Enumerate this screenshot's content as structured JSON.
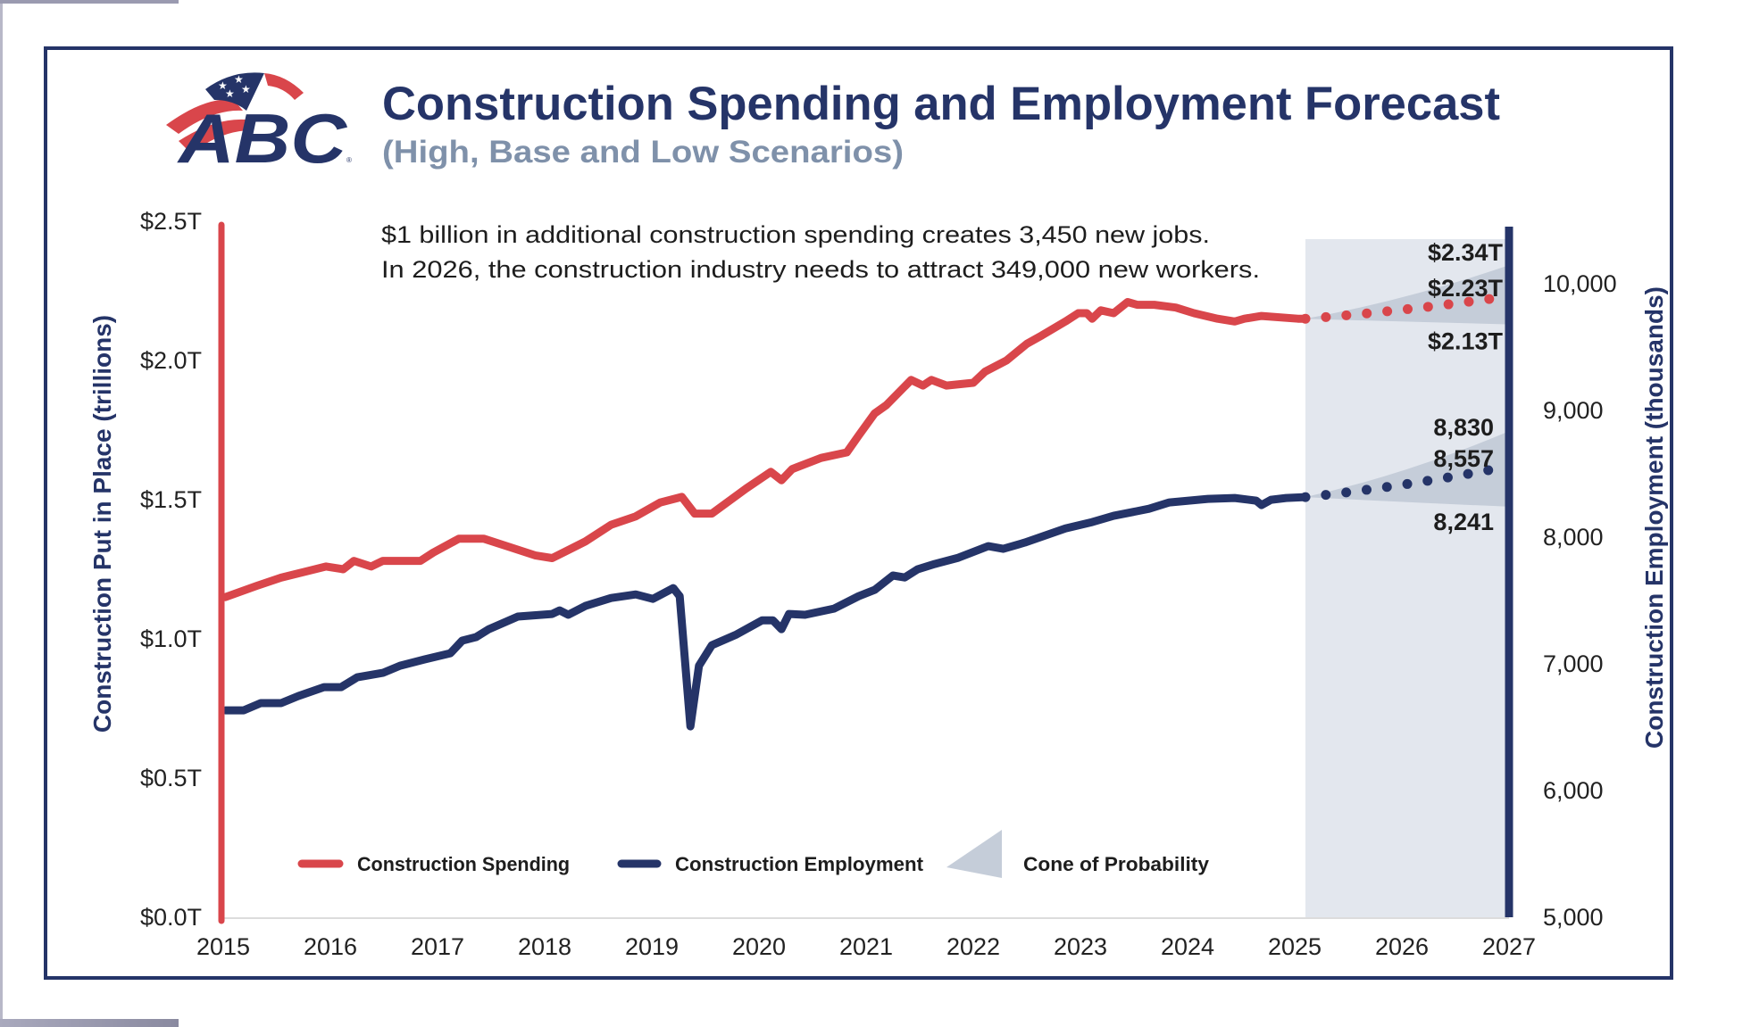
{
  "header": {
    "logo_text": "ABC",
    "title": "Construction Spending and Employment Forecast",
    "subtitle": "(High, Base and Low Scenarios)"
  },
  "annotation": {
    "line1": "$1 billion in additional construction spending creates 3,450 new jobs.",
    "line2": "In 2026, the construction industry needs to attract 349,000 new workers."
  },
  "colors": {
    "spending": "#d9464b",
    "employment": "#253468",
    "cone": "#c5cdd9",
    "forecast_band": "#e3e7ee",
    "frame": "#253468"
  },
  "chart_data": {
    "type": "line",
    "title": "Construction Spending and Employment Forecast",
    "subtitle": "(High, Base and Low Scenarios)",
    "xlabel": "",
    "xlim": [
      2015,
      2027
    ],
    "x_ticks": [
      "2015",
      "2016",
      "2017",
      "2018",
      "2019",
      "2020",
      "2021",
      "2022",
      "2023",
      "2024",
      "2025",
      "2026",
      "2027"
    ],
    "y_left": {
      "label": "Construction Put in Place (trillions)",
      "range": [
        0,
        2.5
      ],
      "ticks": [
        "$0.0T",
        "$0.5T",
        "$1.0T",
        "$1.5T",
        "$2.0T",
        "$2.5T"
      ],
      "tick_values": [
        0,
        0.5,
        1.0,
        1.5,
        2.0,
        2.5
      ]
    },
    "y_right": {
      "label": "Construction Employment (thousands)",
      "range": [
        5000,
        10400
      ],
      "ticks": [
        "5,000",
        "6,000",
        "7,000",
        "8,000",
        "9,000",
        "10,000"
      ],
      "tick_values": [
        5000,
        6000,
        7000,
        8000,
        9000,
        10000
      ]
    },
    "forecast_start": 2025.1,
    "legend": {
      "placement": "bottom",
      "items": [
        "Construction Spending",
        "Construction Employment",
        "Cone of Probability"
      ]
    },
    "series": [
      {
        "name": "Construction Spending",
        "axis": "left",
        "x": [
          2015.02,
          2015.31,
          2015.54,
          2015.96,
          2016.12,
          2016.22,
          2016.38,
          2016.49,
          2016.84,
          2016.96,
          2017.2,
          2017.43,
          2017.67,
          2017.91,
          2018.07,
          2018.38,
          2018.62,
          2018.85,
          2019.08,
          2019.28,
          2019.4,
          2019.56,
          2019.88,
          2020.11,
          2020.21,
          2020.31,
          2020.58,
          2020.82,
          2020.93,
          2021.08,
          2021.19,
          2021.42,
          2021.53,
          2021.61,
          2021.75,
          2022.0,
          2022.11,
          2022.31,
          2022.5,
          2022.64,
          2022.86,
          2022.98,
          2023.06,
          2023.11,
          2023.19,
          2023.31,
          2023.44,
          2023.53,
          2023.69,
          2023.89,
          2024.06,
          2024.28,
          2024.44,
          2024.53,
          2024.69,
          2025.03,
          2025.1
        ],
        "y": [
          1.15,
          1.19,
          1.22,
          1.26,
          1.25,
          1.28,
          1.26,
          1.28,
          1.28,
          1.31,
          1.36,
          1.36,
          1.33,
          1.3,
          1.29,
          1.35,
          1.41,
          1.44,
          1.49,
          1.51,
          1.45,
          1.45,
          1.54,
          1.6,
          1.57,
          1.61,
          1.65,
          1.67,
          1.73,
          1.81,
          1.84,
          1.93,
          1.91,
          1.93,
          1.91,
          1.92,
          1.96,
          2.0,
          2.06,
          2.09,
          2.14,
          2.17,
          2.17,
          2.15,
          2.18,
          2.17,
          2.21,
          2.2,
          2.2,
          2.19,
          2.17,
          2.15,
          2.14,
          2.15,
          2.16,
          2.15,
          2.15
        ]
      },
      {
        "name": "Construction Employment",
        "axis": "right",
        "x": [
          2015.02,
          2015.19,
          2015.35,
          2015.54,
          2015.7,
          2015.94,
          2016.1,
          2016.25,
          2016.49,
          2016.65,
          2016.88,
          2017.12,
          2017.23,
          2017.36,
          2017.48,
          2017.75,
          2018.07,
          2018.14,
          2018.22,
          2018.38,
          2018.62,
          2018.85,
          2019.01,
          2019.2,
          2019.26,
          2019.36,
          2019.44,
          2019.56,
          2019.79,
          2020.03,
          2020.13,
          2020.21,
          2020.28,
          2020.43,
          2020.7,
          2020.93,
          2021.08,
          2021.25,
          2021.36,
          2021.48,
          2021.64,
          2021.86,
          2022.14,
          2022.28,
          2022.48,
          2022.86,
          2023.11,
          2023.31,
          2023.64,
          2023.83,
          2024.19,
          2024.44,
          2024.64,
          2024.69,
          2024.78,
          2024.92,
          2025.1
        ],
        "y": [
          6633,
          6633,
          6690,
          6690,
          6746,
          6816,
          6816,
          6894,
          6929,
          6985,
          7035,
          7084,
          7183,
          7211,
          7274,
          7373,
          7394,
          7422,
          7387,
          7457,
          7520,
          7548,
          7513,
          7598,
          7534,
          6506,
          6985,
          7147,
          7232,
          7344,
          7344,
          7274,
          7394,
          7387,
          7436,
          7534,
          7584,
          7697,
          7682,
          7746,
          7788,
          7837,
          7929,
          7908,
          7957,
          8069,
          8119,
          8168,
          8224,
          8274,
          8302,
          8309,
          8288,
          8253,
          8295,
          8309,
          8316
        ]
      }
    ],
    "forecasts": [
      {
        "name": "Construction Spending",
        "axis": "left",
        "start": [
          2025.1,
          2.15
        ],
        "end_x": 2027,
        "high": 2.34,
        "base": 2.23,
        "low": 2.13,
        "labels": {
          "high": "$2.34T",
          "base": "$2.23T",
          "low": "$2.13T"
        }
      },
      {
        "name": "Construction Employment",
        "axis": "right",
        "start": [
          2025.1,
          8316
        ],
        "end_x": 2027,
        "high": 8830,
        "base": 8557,
        "low": 8241,
        "labels": {
          "high": "8,830",
          "base": "8,557",
          "low": "8,241"
        }
      }
    ]
  }
}
